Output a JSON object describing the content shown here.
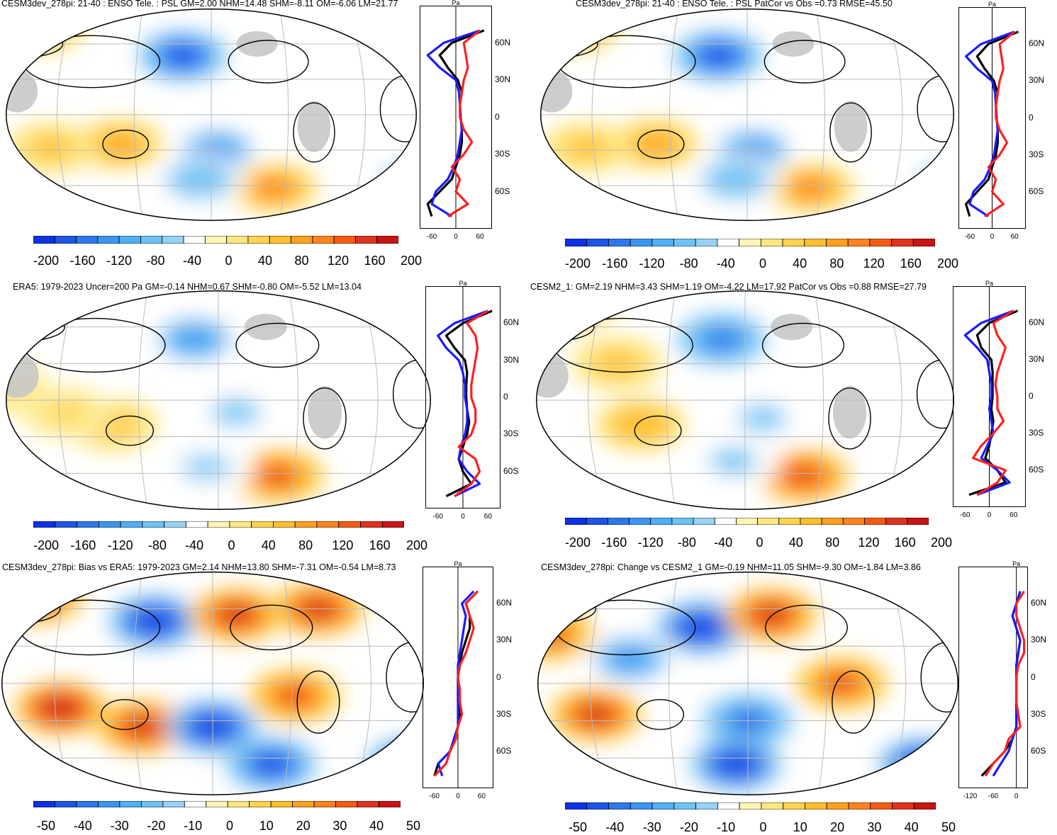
{
  "colors": {
    "blues": [
      "#0a32e6",
      "#1e55e6",
      "#2d78ec",
      "#3c96f0",
      "#50aff5",
      "#6ec3f5",
      "#96d2f5",
      "#ffffff"
    ],
    "reds": [
      "#fff5b4",
      "#ffe682",
      "#ffd250",
      "#ffbe2d",
      "#ffa01e",
      "#ff821e",
      "#f55a14",
      "#e1321e",
      "#c81414"
    ],
    "land_mask": "#c8c8c8",
    "model_line": "#1a1aff",
    "obs_line": "#ff2020",
    "ref_line": "#000000"
  },
  "panels": [
    {
      "id": "model",
      "title": "CESM3dev_278pi: 21-40 : ENSO Tele. : PSL GM=2.00 NHM=14.48 SHM=-8.11 OM=-6.06 LM=21.77",
      "colorbar_labels": [
        "-200",
        "-160",
        "-120",
        "-80",
        "-40",
        "0",
        "40",
        "80",
        "120",
        "160",
        "200"
      ],
      "profile_ticks": [
        "-60",
        "0",
        "60"
      ],
      "lat_labels": [
        "60N",
        "30N",
        "0",
        "30S",
        "60S"
      ],
      "profile_unit": "Pa"
    },
    {
      "id": "model_patcor",
      "title": "CESM3dev_278pi: 21-40 : ENSO Tele. : PSL PatCor vs Obs =0.73 RMSE=45.50",
      "colorbar_labels": [
        "-200",
        "-160",
        "-120",
        "-80",
        "-40",
        "0",
        "40",
        "80",
        "120",
        "160",
        "200"
      ],
      "profile_ticks": [
        "-60",
        "0",
        "60"
      ],
      "lat_labels": [
        "60N",
        "30N",
        "0",
        "30S",
        "60S"
      ],
      "profile_unit": "Pa"
    },
    {
      "id": "era5",
      "title": "ERA5: 1979-2023 Uncer=200 Pa GM=-0.14 NHM=0.67 SHM=-0.80 OM=-5.52 LM=13.04",
      "colorbar_labels": [
        "-200",
        "-160",
        "-120",
        "-80",
        "-40",
        "0",
        "40",
        "80",
        "120",
        "160",
        "200"
      ],
      "profile_ticks": [
        "-60",
        "0",
        "60"
      ],
      "lat_labels": [
        "60N",
        "30N",
        "0",
        "30S",
        "60S"
      ],
      "profile_unit": "Pa"
    },
    {
      "id": "cesm2",
      "title": "CESM2_1: GM=2.19 NHM=3.43 SHM=1.19 OM=-4.22 LM=17.92 PatCor vs Obs =0.88 RMSE=27.79",
      "colorbar_labels": [
        "-200",
        "-160",
        "-120",
        "-80",
        "-40",
        "0",
        "40",
        "80",
        "120",
        "160",
        "200"
      ],
      "profile_ticks": [
        "-60",
        "0",
        "60"
      ],
      "lat_labels": [
        "60N",
        "30N",
        "0",
        "30S",
        "60S"
      ],
      "profile_unit": "Pa"
    },
    {
      "id": "bias",
      "title": "CESM3dev_278pi: Bias vs ERA5: 1979-2023 GM=2.14 NHM=13.80 SHM=-7.31 OM=-0.54 LM=8.73",
      "colorbar_labels": [
        "-50",
        "-40",
        "-30",
        "-20",
        "-10",
        "0",
        "10",
        "20",
        "30",
        "40",
        "50"
      ],
      "profile_ticks": [
        "-60",
        "0",
        "60"
      ],
      "lat_labels": [
        "60N",
        "30N",
        "0",
        "30S",
        "60S"
      ],
      "profile_unit": "Pa"
    },
    {
      "id": "change",
      "title": "CESM3dev_278pi: Change vs CESM2_1 GM=-0.19 NHM=11.05 SHM=-9.30 OM=-1.84 LM=3.86",
      "colorbar_labels": [
        "-50",
        "-40",
        "-30",
        "-20",
        "-10",
        "0",
        "10",
        "20",
        "30",
        "40",
        "50"
      ],
      "profile_ticks": [
        "-120",
        "-60",
        "0"
      ],
      "lat_labels": [
        "60N",
        "30N",
        "0",
        "30S",
        "60S"
      ],
      "profile_unit": "Pa"
    }
  ],
  "chart_data": [
    {
      "type": "heatmap",
      "title": "CESM3dev_278pi: 21-40 : ENSO Tele. : PSL GM=2.00 NHM=14.48 SHM=-8.11 OM=-6.06 LM=21.77",
      "projection": "Robinson, Pacific-centered",
      "colorbar_range": [
        -200,
        200
      ],
      "colorbar_ticks": [
        -200,
        -160,
        -120,
        -80,
        -40,
        0,
        40,
        80,
        120,
        160,
        200
      ],
      "blobs": [
        {
          "lon": 185,
          "lat": 50,
          "value": -190
        },
        {
          "lon": 215,
          "lat": -30,
          "value": -120
        },
        {
          "lon": 130,
          "lat": -25,
          "value": 90
        },
        {
          "lon": 70,
          "lat": -28,
          "value": 60
        },
        {
          "lon": 265,
          "lat": -62,
          "value": 110
        },
        {
          "lon": 60,
          "lat": 75,
          "value": 100
        },
        {
          "lon": 200,
          "lat": -55,
          "value": -80
        },
        {
          "lon": 20,
          "lat": -55,
          "value": -70
        }
      ],
      "zonal_profile": {
        "xlim": [
          -90,
          90
        ],
        "lat": [
          -80,
          -70,
          -60,
          -50,
          -40,
          -30,
          -20,
          -10,
          0,
          10,
          20,
          30,
          40,
          50,
          60,
          70
        ],
        "model": [
          -10,
          -60,
          -50,
          -20,
          -5,
          5,
          10,
          15,
          12,
          10,
          8,
          0,
          -40,
          -70,
          -30,
          60
        ],
        "obs": [
          -20,
          30,
          0,
          10,
          -10,
          20,
          40,
          20,
          10,
          10,
          15,
          20,
          30,
          25,
          20,
          60
        ],
        "ref": [
          -60,
          -70,
          -40,
          -10,
          0,
          10,
          15,
          15,
          12,
          10,
          15,
          5,
          -20,
          -40,
          -10,
          70
        ]
      }
    },
    {
      "type": "heatmap",
      "title": "CESM3dev_278pi: 21-40 : ENSO Tele. : PSL PatCor vs Obs =0.73 RMSE=45.50",
      "colorbar_range": [
        -200,
        200
      ],
      "colorbar_ticks": [
        -200,
        -160,
        -120,
        -80,
        -40,
        0,
        40,
        80,
        120,
        160,
        200
      ],
      "blobs": [
        {
          "lon": 185,
          "lat": 50,
          "value": -190
        },
        {
          "lon": 215,
          "lat": -30,
          "value": -120
        },
        {
          "lon": 130,
          "lat": -25,
          "value": 90
        },
        {
          "lon": 70,
          "lat": -28,
          "value": 60
        },
        {
          "lon": 265,
          "lat": -62,
          "value": 110
        },
        {
          "lon": 60,
          "lat": 75,
          "value": 100
        },
        {
          "lon": 200,
          "lat": -55,
          "value": -80
        },
        {
          "lon": 20,
          "lat": -55,
          "value": -70
        }
      ],
      "zonal_profile": {
        "xlim": [
          -90,
          90
        ],
        "lat": [
          -80,
          -70,
          -60,
          -50,
          -40,
          -30,
          -20,
          -10,
          0,
          10,
          20,
          30,
          40,
          50,
          60,
          70
        ],
        "model": [
          -10,
          -60,
          -50,
          -20,
          -5,
          5,
          10,
          15,
          12,
          10,
          8,
          0,
          -40,
          -70,
          -30,
          60
        ],
        "obs": [
          -20,
          30,
          0,
          10,
          -10,
          20,
          40,
          20,
          10,
          10,
          15,
          20,
          30,
          25,
          20,
          60
        ],
        "ref": [
          -60,
          -70,
          -40,
          -10,
          0,
          10,
          15,
          15,
          12,
          10,
          15,
          5,
          -20,
          -40,
          -10,
          70
        ]
      }
    },
    {
      "type": "heatmap",
      "title": "ERA5: 1979-2023 Uncer=200 Pa GM=-0.14 NHM=0.67 SHM=-0.80 OM=-5.52 LM=13.04",
      "colorbar_range": [
        -200,
        200
      ],
      "colorbar_ticks": [
        -200,
        -160,
        -120,
        -80,
        -40,
        0,
        40,
        80,
        120,
        160,
        200
      ],
      "blobs": [
        {
          "lon": 190,
          "lat": 50,
          "value": -120
        },
        {
          "lon": 225,
          "lat": -10,
          "value": -60
        },
        {
          "lon": 120,
          "lat": -20,
          "value": 60
        },
        {
          "lon": 80,
          "lat": -10,
          "value": 40
        },
        {
          "lon": 260,
          "lat": -62,
          "value": 160
        },
        {
          "lon": 200,
          "lat": -55,
          "value": -50
        },
        {
          "lon": 30,
          "lat": 10,
          "value": 30
        }
      ],
      "zonal_profile": {
        "xlim": [
          -90,
          90
        ],
        "lat": [
          -80,
          -70,
          -60,
          -50,
          -40,
          -30,
          -20,
          -10,
          0,
          10,
          20,
          30,
          40,
          50,
          60,
          70
        ],
        "model": [
          -20,
          40,
          10,
          -10,
          -5,
          5,
          10,
          10,
          5,
          5,
          0,
          -10,
          -40,
          -60,
          -20,
          60
        ],
        "obs": [
          -20,
          20,
          40,
          30,
          -10,
          20,
          30,
          30,
          20,
          20,
          25,
          30,
          35,
          30,
          10,
          60
        ],
        "ref": [
          -40,
          20,
          0,
          -10,
          0,
          10,
          15,
          10,
          8,
          8,
          10,
          5,
          -20,
          -40,
          0,
          70
        ]
      }
    },
    {
      "type": "heatmap",
      "title": "CESM2_1: GM=2.19 NHM=3.43 SHM=1.19 OM=-4.22 LM=17.92 PatCor vs Obs =0.88 RMSE=27.79",
      "colorbar_range": [
        -200,
        200
      ],
      "colorbar_ticks": [
        -200,
        -160,
        -120,
        -80,
        -40,
        0,
        40,
        80,
        120,
        160,
        200
      ],
      "blobs": [
        {
          "lon": 190,
          "lat": 50,
          "value": -150
        },
        {
          "lon": 225,
          "lat": -15,
          "value": -70
        },
        {
          "lon": 120,
          "lat": -20,
          "value": 80
        },
        {
          "lon": 100,
          "lat": 30,
          "value": 60
        },
        {
          "lon": 260,
          "lat": -62,
          "value": 170
        },
        {
          "lon": 60,
          "lat": 80,
          "value": 90
        },
        {
          "lon": 200,
          "lat": -50,
          "value": -60
        }
      ],
      "zonal_profile": {
        "xlim": [
          -90,
          90
        ],
        "lat": [
          -80,
          -70,
          -60,
          -50,
          -40,
          -30,
          -20,
          -10,
          0,
          10,
          20,
          30,
          40,
          50,
          60,
          70
        ],
        "model": [
          -30,
          50,
          20,
          -20,
          -5,
          10,
          5,
          0,
          5,
          5,
          0,
          -5,
          -30,
          -60,
          -20,
          60
        ],
        "obs": [
          -30,
          20,
          40,
          -40,
          -20,
          10,
          35,
          20,
          20,
          15,
          20,
          30,
          40,
          20,
          10,
          60
        ],
        "ref": [
          -50,
          40,
          20,
          -10,
          0,
          5,
          10,
          5,
          8,
          8,
          8,
          5,
          -20,
          -30,
          0,
          70
        ]
      }
    },
    {
      "type": "heatmap",
      "title": "CESM3dev_278pi: Bias vs ERA5: 1979-2023 GM=2.14 NHM=13.80 SHM=-7.31 OM=-0.54 LM=8.73",
      "colorbar_range": [
        -50,
        50
      ],
      "colorbar_ticks": [
        -50,
        -40,
        -30,
        -20,
        -10,
        0,
        10,
        20,
        30,
        40,
        50
      ],
      "blobs": [
        {
          "lon": 160,
          "lat": 50,
          "value": -55
        },
        {
          "lon": 230,
          "lat": 55,
          "value": 50
        },
        {
          "lon": 300,
          "lat": 60,
          "value": 50
        },
        {
          "lon": 80,
          "lat": -20,
          "value": 55
        },
        {
          "lon": 150,
          "lat": -35,
          "value": 45
        },
        {
          "lon": 210,
          "lat": -35,
          "value": -55
        },
        {
          "lon": 280,
          "lat": -10,
          "value": 40
        },
        {
          "lon": 20,
          "lat": -65,
          "value": -55
        },
        {
          "lon": 260,
          "lat": -65,
          "value": -50
        },
        {
          "lon": 60,
          "lat": 70,
          "value": 50
        }
      ],
      "zonal_profile": {
        "xlim": [
          -90,
          90
        ],
        "lat": [
          -80,
          -70,
          -60,
          -50,
          -40,
          -30,
          -20,
          -10,
          0,
          10,
          20,
          30,
          40,
          50,
          60,
          70
        ],
        "model": [
          -40,
          -50,
          -20,
          -10,
          0,
          0,
          0,
          0,
          0,
          0,
          5,
          10,
          15,
          20,
          10,
          40
        ],
        "obs": [
          -60,
          -30,
          -20,
          -5,
          0,
          10,
          5,
          5,
          0,
          5,
          20,
          30,
          40,
          30,
          20,
          50
        ],
        "ref": [
          -60,
          -50,
          -20,
          -10,
          0,
          5,
          0,
          0,
          0,
          5,
          10,
          20,
          30,
          30,
          20,
          50
        ]
      }
    },
    {
      "type": "heatmap",
      "title": "CESM3dev_278pi: Change vs CESM2_1 GM=-0.19 NHM=11.05 SHM=-9.30 OM=-1.84 LM=3.86",
      "colorbar_range": [
        -50,
        50
      ],
      "colorbar_ticks": [
        -50,
        -40,
        -30,
        -20,
        -10,
        0,
        10,
        20,
        30,
        40,
        50
      ],
      "blobs": [
        {
          "lon": 170,
          "lat": 45,
          "value": -55
        },
        {
          "lon": 230,
          "lat": 55,
          "value": 50
        },
        {
          "lon": 80,
          "lat": -25,
          "value": 50
        },
        {
          "lon": 40,
          "lat": 40,
          "value": 40
        },
        {
          "lon": 290,
          "lat": 0,
          "value": 40
        },
        {
          "lon": 210,
          "lat": -30,
          "value": -40
        },
        {
          "lon": 110,
          "lat": 20,
          "value": -30
        },
        {
          "lon": 0,
          "lat": -65,
          "value": -55
        },
        {
          "lon": 200,
          "lat": -65,
          "value": -55
        }
      ],
      "zonal_profile": {
        "xlim": [
          -150,
          30
        ],
        "lat": [
          -80,
          -70,
          -60,
          -50,
          -40,
          -30,
          -20,
          -10,
          0,
          10,
          20,
          30,
          40,
          50,
          60,
          70
        ],
        "model": [
          -60,
          -40,
          -20,
          -10,
          0,
          0,
          0,
          0,
          0,
          0,
          5,
          10,
          0,
          -10,
          0,
          10
        ],
        "obs": [
          -80,
          -60,
          -30,
          -20,
          10,
          5,
          0,
          0,
          0,
          5,
          20,
          20,
          10,
          0,
          0,
          20
        ],
        "ref": [
          -90,
          -60,
          -30,
          -10,
          0,
          0,
          0,
          0,
          0,
          0,
          5,
          10,
          0,
          -10,
          0,
          10
        ]
      }
    }
  ]
}
